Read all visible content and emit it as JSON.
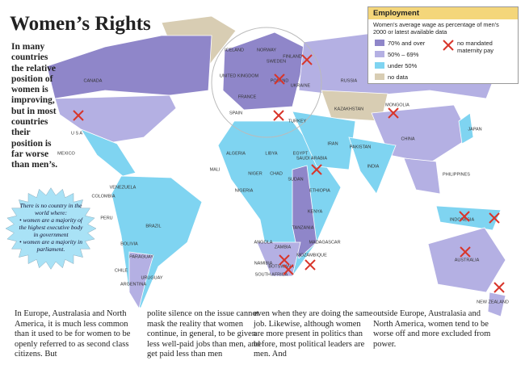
{
  "header": {
    "title": "Women’s Rights"
  },
  "intro": "In many countries the relative position of women is improving, but in most countries their position is far worse than men’s.",
  "callout": [
    "There is no country in the world where:",
    "• women are a majority of the highest executive body in government",
    "• women are a majority in parliament."
  ],
  "legend": {
    "title": "Employment",
    "subtitle": "Women’s average wage as percentage of men’s 2000 or latest available data",
    "items": [
      {
        "label": "70% and over",
        "color": "#8f86c9"
      },
      {
        "label": "50% – 69%",
        "color": "#b4b0e3"
      },
      {
        "label": "under 50%",
        "color": "#7fd4f1"
      },
      {
        "label": "no data",
        "color": "#d8cdb3"
      },
      {
        "label": "no mandated maternity pay",
        "color": "#d8352a"
      }
    ]
  },
  "map": {
    "labels": [
      "CANADA",
      "U S A",
      "MEXICO",
      "COLOMBIA",
      "VENEZUELA",
      "PERU",
      "BRAZIL",
      "BOLIVIA",
      "PARAGUAY",
      "CHILE",
      "ARGENTINA",
      "URUGUAY",
      "ICELAND",
      "NORWAY",
      "SWEDEN",
      "FINLAND",
      "UNITED KINGDOM",
      "FRANCE",
      "SPAIN",
      "POLAND",
      "UKRAINE",
      "TURKEY",
      "RUSSIA",
      "KAZAKHSTAN",
      "MONGOLIA",
      "CHINA",
      "IRAN",
      "PAKISTAN",
      "INDIA",
      "SAUDI ARABIA",
      "ALGERIA",
      "LIBYA",
      "EGYPT",
      "MALI",
      "NIGER",
      "CHAD",
      "SUDAN",
      "NIGERIA",
      "ETHIOPIA",
      "KENYA",
      "TANZANIA",
      "ANGOLA",
      "ZAMBIA",
      "NAMIBIA",
      "BOTSWANA",
      "MOZAMBIQUE",
      "MADAGASCAR",
      "SOUTH AFRICA",
      "JAPAN",
      "PHILIPPINES",
      "INDONESIA",
      "AUSTRALIA",
      "NEW ZEALAND"
    ]
  },
  "body": [
    "In Europe, Australasia and North America, it is much less common than it used to be for women to be openly referred to as second class citizens. But",
    "polite silence on the issue cannot mask the reality that women continue, in general, to be given less well-paid jobs than men, and get paid less than men",
    "even when they are doing the same job. Likewise, although women are more present in politics than before, most political leaders are men. And",
    "outside Europe, Australasia and North America, women tend to be worse off and more excluded from power."
  ]
}
